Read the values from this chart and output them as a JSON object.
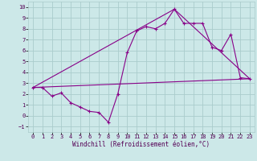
{
  "xlabel": "Windchill (Refroidissement éolien,°C)",
  "xlim": [
    -0.5,
    23.5
  ],
  "ylim": [
    -1.5,
    10.5
  ],
  "xticks": [
    0,
    1,
    2,
    3,
    4,
    5,
    6,
    7,
    8,
    9,
    10,
    11,
    12,
    13,
    14,
    15,
    16,
    17,
    18,
    19,
    20,
    21,
    22,
    23
  ],
  "yticks": [
    -1,
    0,
    1,
    2,
    3,
    4,
    5,
    6,
    7,
    8,
    9,
    10
  ],
  "background_color": "#cce8e8",
  "grid_color": "#aacccc",
  "line_color": "#880088",
  "curve1_x": [
    0,
    1,
    2,
    3,
    4,
    5,
    6,
    7,
    8,
    9,
    10,
    11,
    12,
    13,
    14,
    15,
    16,
    17,
    18,
    19,
    20,
    21,
    22,
    23
  ],
  "curve1_y": [
    2.6,
    2.6,
    1.8,
    2.1,
    1.2,
    0.8,
    0.4,
    0.3,
    -0.6,
    2.0,
    5.8,
    7.8,
    8.2,
    8.0,
    8.5,
    9.8,
    8.5,
    8.5,
    8.5,
    6.3,
    6.0,
    7.5,
    3.5,
    3.4
  ],
  "curve2_x": [
    0,
    23
  ],
  "curve2_y": [
    2.6,
    3.4
  ],
  "curve3_x": [
    0,
    15,
    23
  ],
  "curve3_y": [
    2.6,
    9.8,
    3.4
  ],
  "tick_fontsize": 5.0,
  "xlabel_fontsize": 5.5
}
